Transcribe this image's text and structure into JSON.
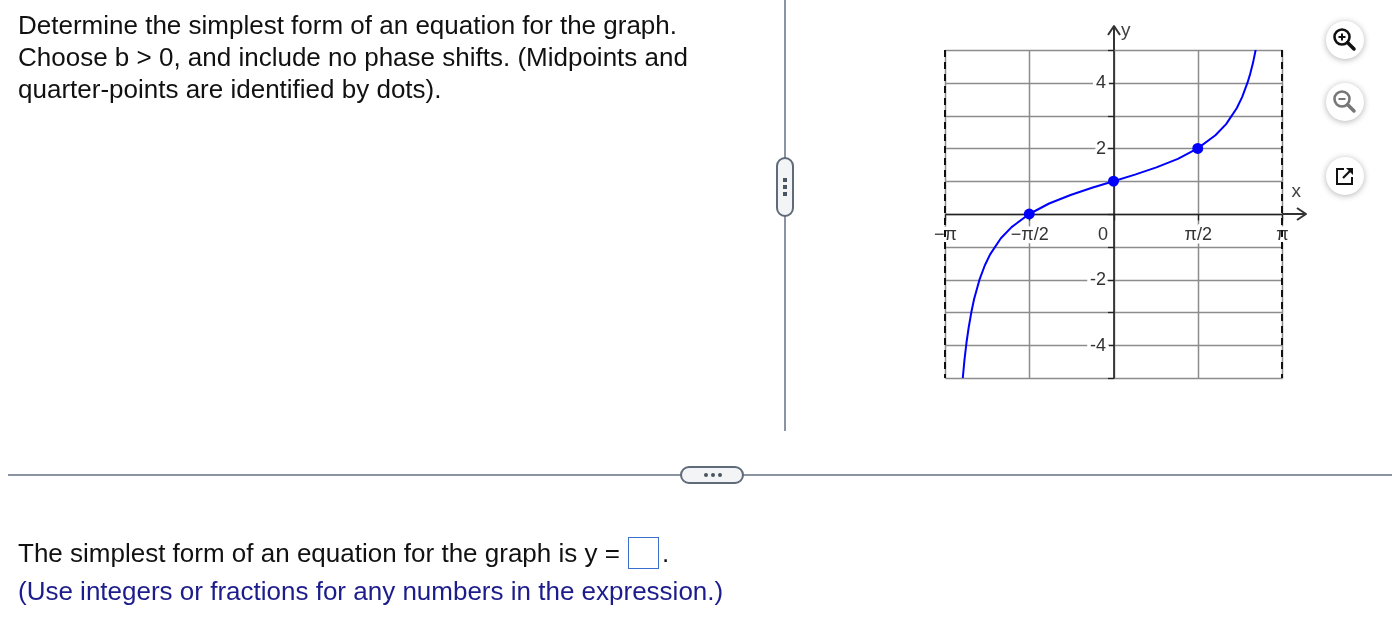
{
  "chart_data": {
    "type": "line",
    "title": "Determine the simplest form of an equation for the graph. Choose b > 0, and include no phase shifts. (Midpoints and quarter-points are identified by dots).",
    "xlabel": "x",
    "ylabel": "y",
    "annotations": [
      "The simplest form of an equation for the graph is y =",
      ".",
      "(Use integers or fractions for any numbers in the expression.)"
    ],
    "series": [
      {
        "type": "line",
        "color": "#0000ff",
        "x": [
          -2.81,
          -2.78,
          -2.74,
          -2.7,
          -2.65,
          -2.6,
          -2.5,
          -2.4,
          -2.3,
          -2.1,
          -1.9,
          -1.57,
          -1.2,
          -0.8,
          -0.4,
          0,
          0.4,
          0.8,
          1.2,
          1.57,
          1.9,
          2.1,
          2.3,
          2.4,
          2.5,
          2.55,
          2.6,
          2.65
        ],
        "values": [
          -5.0,
          -4.47,
          -3.91,
          -3.46,
          -2.99,
          -2.6,
          -2.01,
          -1.57,
          -1.23,
          -0.74,
          -0.4,
          0,
          0.32,
          0.58,
          0.8,
          1,
          1.2,
          1.42,
          1.68,
          2,
          2.4,
          2.74,
          3.23,
          3.57,
          4.01,
          4.28,
          4.6,
          5.0
        ]
      },
      {
        "type": "scatter",
        "color": "#0000ff",
        "marker": "circle",
        "x": [
          -1.5708,
          0,
          1.5708
        ],
        "values": [
          0,
          1,
          2
        ]
      }
    ],
    "xlim": [
      -3.1416,
      3.1416
    ],
    "xticks": [
      {
        "value": -3.1416,
        "label": "−π"
      },
      {
        "value": -1.5708,
        "label": "−π/2"
      },
      0,
      {
        "value": 1.5708,
        "label": "π/2"
      },
      {
        "value": 3.1416,
        "label": "π"
      }
    ],
    "ylim": [
      -5,
      5
    ],
    "yticks": [
      {
        "value": -5,
        "label": null
      },
      -4,
      {
        "value": -3,
        "label": null
      },
      -2,
      {
        "value": -1,
        "label": null
      },
      {
        "value": 0,
        "label": null
      },
      {
        "value": 1,
        "label": null
      },
      2,
      {
        "value": 3,
        "label": null
      },
      4,
      {
        "value": 5,
        "label": null
      }
    ],
    "grid": true,
    "ref_lines": [
      {
        "axis": "x",
        "value": -3.1416,
        "color": "#111111",
        "line_style": "dashed"
      },
      {
        "axis": "x",
        "value": 3.1416,
        "color": "#111111",
        "line_style": "dashed"
      }
    ]
  }
}
